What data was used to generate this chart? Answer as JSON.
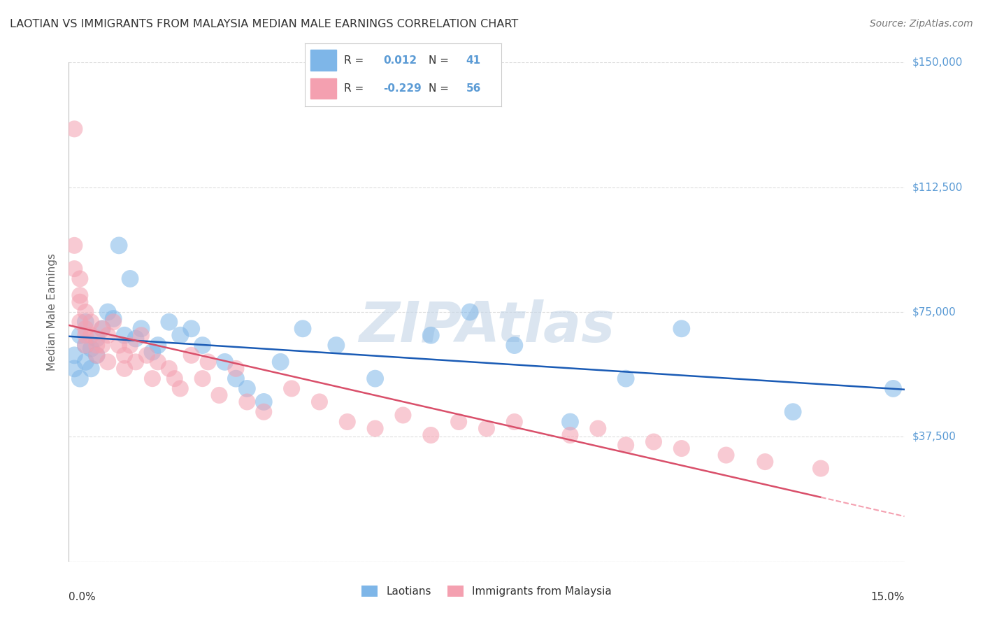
{
  "title": "LAOTIAN VS IMMIGRANTS FROM MALAYSIA MEDIAN MALE EARNINGS CORRELATION CHART",
  "source": "Source: ZipAtlas.com",
  "ylabel": "Median Male Earnings",
  "xmin": 0.0,
  "xmax": 0.15,
  "ymin": 0,
  "ymax": 150000,
  "yticks": [
    0,
    37500,
    75000,
    112500,
    150000
  ],
  "ytick_labels": [
    "",
    "$37,500",
    "$75,000",
    "$112,500",
    "$150,000"
  ],
  "legend_blue_r": "0.012",
  "legend_blue_n": "41",
  "legend_pink_r": "-0.229",
  "legend_pink_n": "56",
  "blue_scatter_color": "#7EB6E8",
  "pink_scatter_color": "#F4A0B0",
  "trend_blue_color": "#1A5BB5",
  "trend_pink_color": "#D94F6A",
  "trend_pink_dashed_color": "#F4A0B0",
  "watermark_color": "#C8D8E8",
  "title_color": "#333333",
  "source_color": "#777777",
  "ylabel_color": "#666666",
  "right_label_color": "#5B9BD5",
  "grid_color": "#DDDDDD",
  "bottom_label_color": "#333333",
  "laotians_x": [
    0.001,
    0.001,
    0.002,
    0.002,
    0.003,
    0.003,
    0.003,
    0.004,
    0.004,
    0.005,
    0.005,
    0.006,
    0.007,
    0.008,
    0.009,
    0.01,
    0.011,
    0.012,
    0.013,
    0.015,
    0.016,
    0.018,
    0.02,
    0.022,
    0.024,
    0.028,
    0.03,
    0.032,
    0.035,
    0.038,
    0.042,
    0.048,
    0.055,
    0.065,
    0.072,
    0.08,
    0.09,
    0.1,
    0.11,
    0.13,
    0.148
  ],
  "laotians_y": [
    62000,
    58000,
    55000,
    68000,
    65000,
    72000,
    60000,
    58000,
    64000,
    67000,
    62000,
    70000,
    75000,
    73000,
    95000,
    68000,
    85000,
    67000,
    70000,
    63000,
    65000,
    72000,
    68000,
    70000,
    65000,
    60000,
    55000,
    52000,
    48000,
    60000,
    70000,
    65000,
    55000,
    68000,
    75000,
    65000,
    42000,
    55000,
    70000,
    45000,
    52000
  ],
  "malaysia_x": [
    0.001,
    0.001,
    0.001,
    0.002,
    0.002,
    0.002,
    0.002,
    0.003,
    0.003,
    0.003,
    0.003,
    0.004,
    0.004,
    0.005,
    0.005,
    0.006,
    0.006,
    0.007,
    0.007,
    0.008,
    0.009,
    0.01,
    0.01,
    0.011,
    0.012,
    0.013,
    0.014,
    0.015,
    0.016,
    0.018,
    0.019,
    0.02,
    0.022,
    0.024,
    0.025,
    0.027,
    0.03,
    0.032,
    0.035,
    0.04,
    0.045,
    0.05,
    0.055,
    0.06,
    0.065,
    0.07,
    0.075,
    0.08,
    0.09,
    0.095,
    0.1,
    0.105,
    0.11,
    0.118,
    0.125,
    0.135
  ],
  "malaysia_y": [
    130000,
    95000,
    88000,
    85000,
    80000,
    78000,
    72000,
    75000,
    70000,
    68000,
    65000,
    68000,
    72000,
    65000,
    62000,
    70000,
    65000,
    68000,
    60000,
    72000,
    65000,
    62000,
    58000,
    65000,
    60000,
    68000,
    62000,
    55000,
    60000,
    58000,
    55000,
    52000,
    62000,
    55000,
    60000,
    50000,
    58000,
    48000,
    45000,
    52000,
    48000,
    42000,
    40000,
    44000,
    38000,
    42000,
    40000,
    42000,
    38000,
    40000,
    35000,
    36000,
    34000,
    32000,
    30000,
    28000
  ]
}
